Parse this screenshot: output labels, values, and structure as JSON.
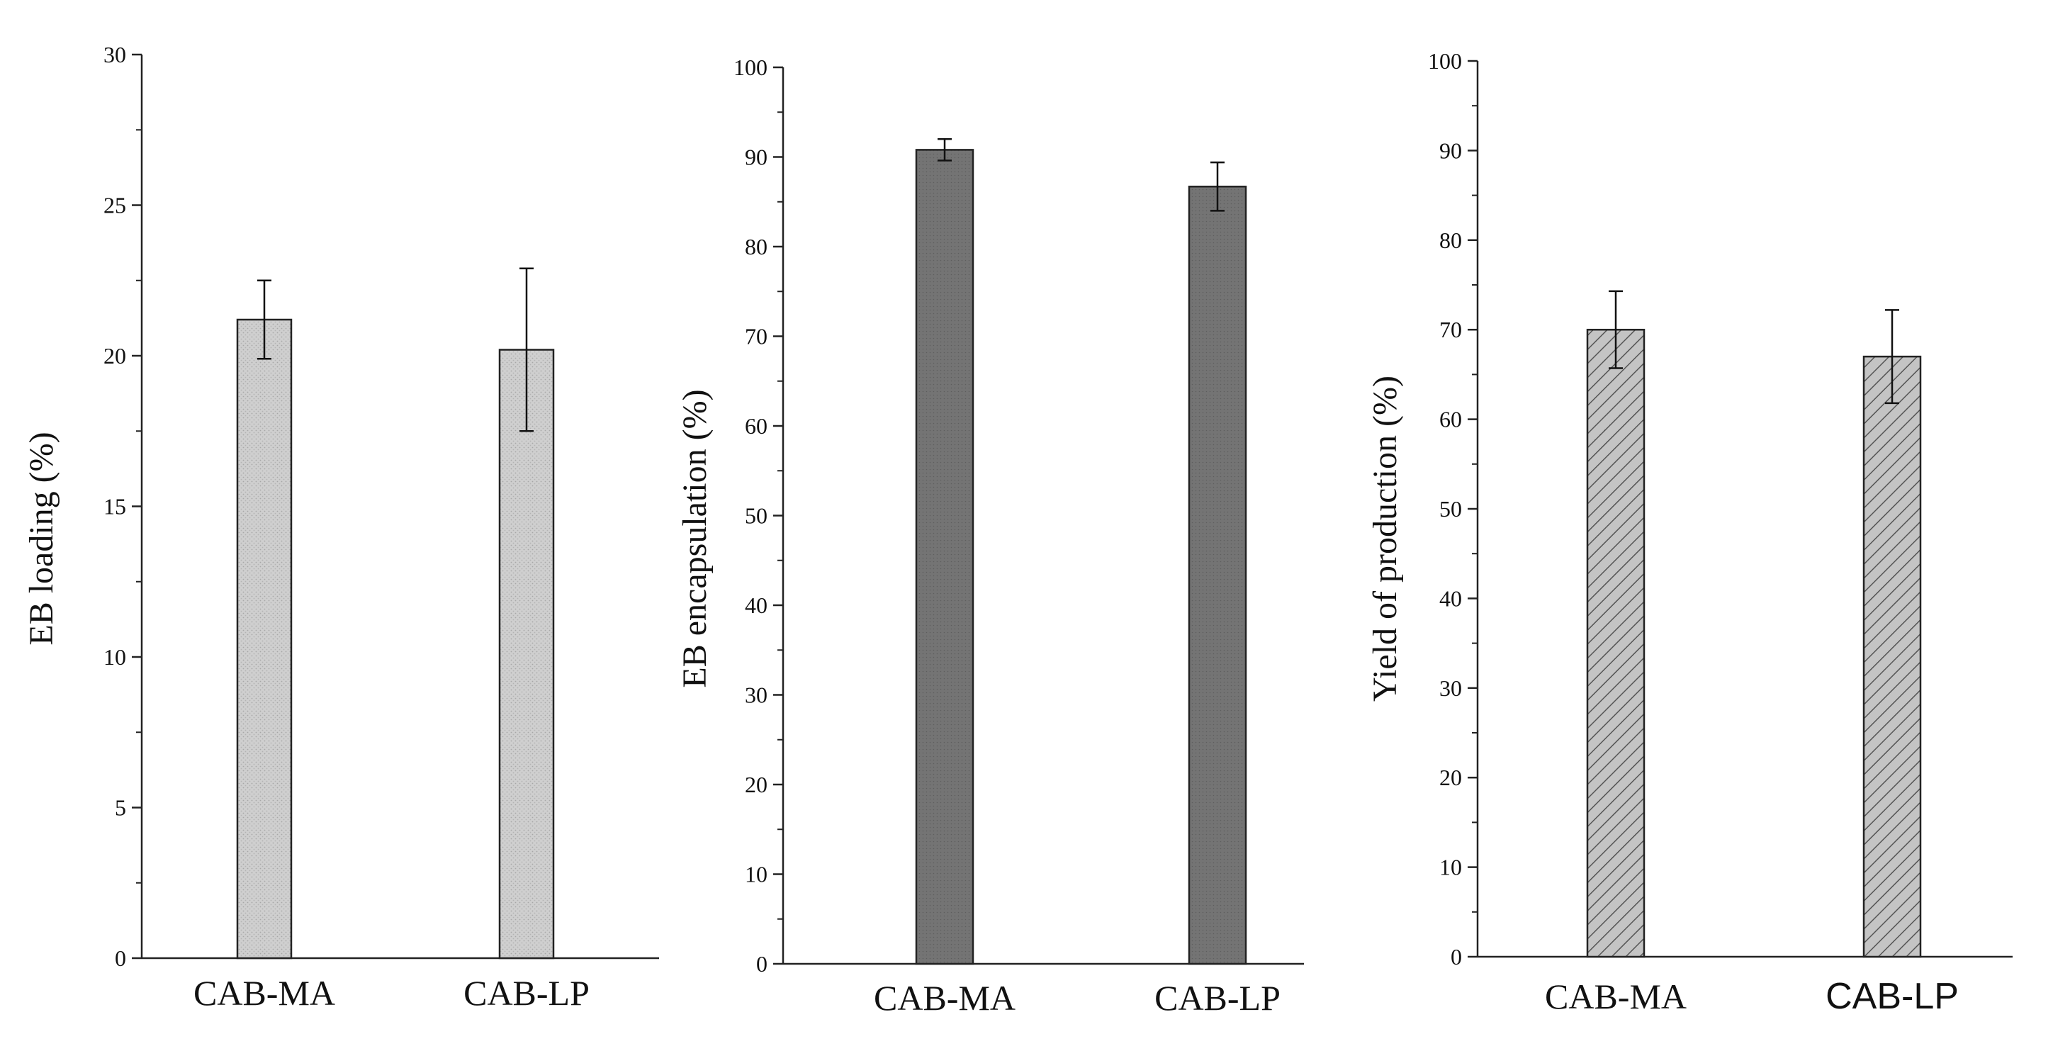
{
  "chart_data": [
    {
      "type": "bar",
      "panel": "left",
      "title": "",
      "xlabel": "",
      "ylabel": "EB loading (%)",
      "categories": [
        "CAB-MA",
        "CAB-LP"
      ],
      "values": [
        21.2,
        20.2
      ],
      "errors": [
        1.3,
        2.7
      ],
      "ylim": [
        0,
        30
      ],
      "yticks": [
        0,
        5,
        10,
        15,
        20,
        25,
        30
      ],
      "ytick_labels": [
        "0",
        "5",
        "10",
        "15",
        "20",
        "25",
        "30"
      ],
      "grid": false,
      "bar_fill": "dotted-light-gray",
      "bar_color": "#c8c8c8"
    },
    {
      "type": "bar",
      "panel": "middle",
      "title": "",
      "xlabel": "",
      "ylabel": "EB encapsulation (%)",
      "categories": [
        "CAB-MA",
        "CAB-LP"
      ],
      "values": [
        90.8,
        86.7
      ],
      "errors": [
        1.2,
        2.7
      ],
      "ylim": [
        0,
        100
      ],
      "yticks": [
        0,
        10,
        20,
        30,
        40,
        50,
        60,
        70,
        80,
        90,
        100
      ],
      "ytick_labels": [
        "0",
        "10",
        "20",
        "30",
        "40",
        "50",
        "60",
        "70",
        "80",
        "90",
        "100"
      ],
      "grid": false,
      "bar_fill": "dark-gray",
      "bar_color": "#6f6f6f"
    },
    {
      "type": "bar",
      "panel": "right",
      "title": "",
      "xlabel": "",
      "ylabel": "Yield of production (%)",
      "categories": [
        "CAB-MA",
        "CAB-LP"
      ],
      "values": [
        70.0,
        67.0
      ],
      "errors": [
        4.3,
        5.2
      ],
      "ylim": [
        0,
        100
      ],
      "yticks": [
        0,
        10,
        20,
        30,
        40,
        50,
        60,
        70,
        80,
        90,
        100
      ],
      "ytick_labels": [
        "0",
        "10",
        "20",
        "30",
        "40",
        "50",
        "60",
        "70",
        "80",
        "90",
        "100"
      ],
      "grid": false,
      "bar_fill": "hatched-gray",
      "bar_color": "#bdbdbd"
    }
  ]
}
